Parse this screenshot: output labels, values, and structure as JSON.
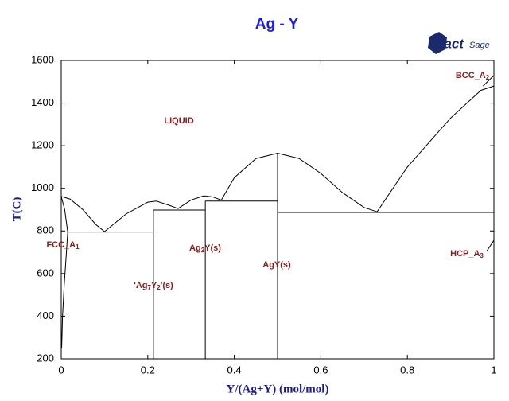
{
  "chart_data": {
    "type": "line",
    "title": "Ag - Y",
    "x_label": "Y/(Ag+Y) (mol/mol)",
    "y_label": "T(C)",
    "logo": {
      "main": "Fact",
      "sub": "Sage"
    },
    "xlim": [
      0,
      1
    ],
    "ylim": [
      200,
      1600
    ],
    "xticks": [
      0,
      0.2,
      0.4,
      0.6,
      0.8,
      1
    ],
    "yticks": [
      200,
      400,
      600,
      800,
      1000,
      1200,
      1400,
      1600
    ],
    "annotations": [
      "LIQUID",
      "BCC_A2",
      "FCC_A1",
      "HCP_A3",
      "Ag2Y(s)",
      "AgY(s)",
      "'Ag7Y2'(s)"
    ],
    "series": [
      {
        "color": "#000000",
        "x": [
          0,
          0.02,
          0.05,
          0.08,
          0.1
        ],
        "values": [
          962,
          950,
          900,
          830,
          797
        ]
      },
      {
        "color": "#000000",
        "x": [
          0.1,
          0.15,
          0.2,
          0.22,
          0.25,
          0.27
        ],
        "values": [
          797,
          880,
          935,
          940,
          920,
          905
        ]
      },
      {
        "color": "#000000",
        "x": [
          0.27,
          0.3,
          0.33,
          0.35,
          0.37
        ],
        "values": [
          905,
          945,
          965,
          960,
          945
        ]
      },
      {
        "color": "#000000",
        "x": [
          0.37,
          0.4,
          0.45,
          0.5,
          0.55,
          0.6,
          0.65,
          0.7,
          0.73
        ],
        "values": [
          945,
          1050,
          1140,
          1165,
          1140,
          1070,
          980,
          910,
          890
        ]
      },
      {
        "color": "#000000",
        "x": [
          0.73,
          0.8,
          0.9,
          0.97,
          1
        ],
        "values": [
          890,
          1100,
          1330,
          1460,
          1480
        ]
      },
      {
        "color": "#000000",
        "x": [
          0.975,
          1
        ],
        "values": [
          1480,
          1530
        ]
      },
      {
        "color": "#000000",
        "x": [
          0.983,
          1
        ],
        "values": [
          704,
          756
        ]
      },
      {
        "color": "#000000",
        "x": [
          0,
          0.008,
          0.015
        ],
        "values": [
          962,
          900,
          795
        ]
      },
      {
        "color": "#000000",
        "x": [
          0.015,
          0.012,
          0.007,
          0.003,
          0.001
        ],
        "values": [
          795,
          700,
          550,
          400,
          250
        ]
      },
      {
        "color": "#000000",
        "x": [
          0.015,
          0.213
        ],
        "values": [
          795,
          795
        ]
      },
      {
        "color": "#000000",
        "x": [
          0.213,
          0.333
        ],
        "values": [
          898,
          898
        ]
      },
      {
        "color": "#000000",
        "x": [
          0.333,
          0.5
        ],
        "values": [
          940,
          940
        ]
      },
      {
        "color": "#000000",
        "x": [
          0.5,
          1
        ],
        "values": [
          887,
          887
        ]
      },
      {
        "color": "#000000",
        "x": [
          0.213,
          0.213
        ],
        "values": [
          200,
          898
        ]
      },
      {
        "color": "#000000",
        "x": [
          0.333,
          0.333
        ],
        "values": [
          200,
          940
        ]
      },
      {
        "color": "#000000",
        "x": [
          0.5,
          0.5
        ],
        "values": [
          200,
          1165
        ]
      }
    ]
  }
}
